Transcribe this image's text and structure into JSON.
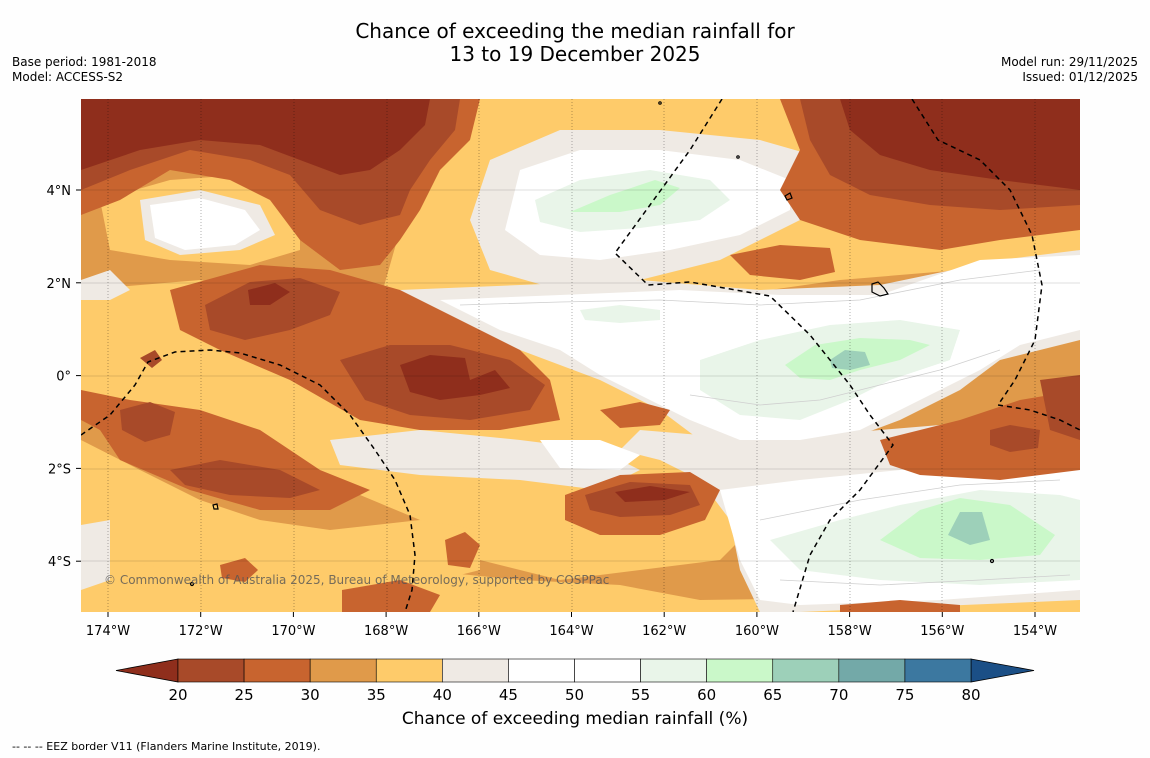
{
  "title": {
    "line1": "Chance of exceeding the median rainfall for",
    "line2": "13 to 19 December 2025"
  },
  "meta_left": {
    "base_period": "Base period: 1981-2018",
    "model": "Model: ACCESS-S2"
  },
  "meta_right": {
    "model_run": "Model run: 29/11/2025",
    "issued": "Issued: 01/12/2025"
  },
  "map": {
    "lon_ticks": [
      "174°W",
      "172°W",
      "170°W",
      "168°W",
      "166°W",
      "164°W",
      "162°W",
      "160°W",
      "158°W",
      "156°W",
      "154°W"
    ],
    "lat_ticks": [
      "4°N",
      "2°N",
      "0°",
      "2°S",
      "4°S"
    ],
    "copyright": "© Commonwealth of Australia 2025, Bureau of Meteorology, supported by COSPPac"
  },
  "colorbar": {
    "labels": [
      "20",
      "25",
      "30",
      "35",
      "40",
      "45",
      "50",
      "55",
      "60",
      "65",
      "70",
      "75",
      "80"
    ],
    "colors": [
      "#a84a29",
      "#c8642f",
      "#e09a4a",
      "#fecb6a",
      "#efeae4",
      "#ffffff",
      "#ffffff",
      "#e9f5e9",
      "#caf8c9",
      "#9dd0b9",
      "#73a9a8",
      "#3c78a0"
    ],
    "under_color": "#8f2e1c",
    "over_color": "#1b4f86",
    "label": "Chance of exceeding median rainfall (%)"
  },
  "footer": "--  --  -- EEZ border V11 (Flanders Marine Institute, 2019)."
}
